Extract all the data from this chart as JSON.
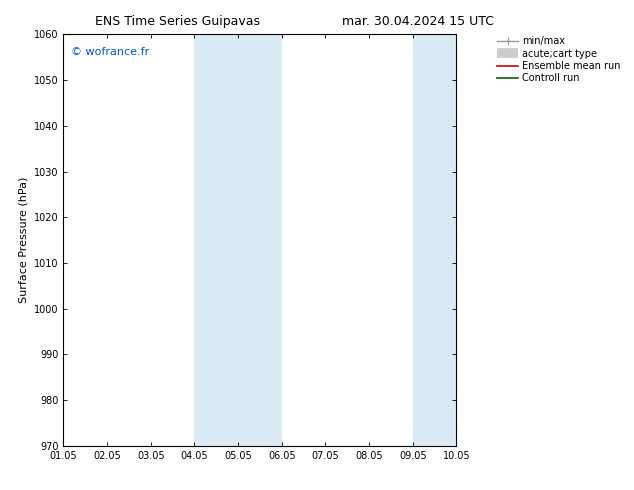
{
  "title_left": "ENS Time Series Guipavas",
  "title_right": "mar. 30.04.2024 15 UTC",
  "ylabel": "Surface Pressure (hPa)",
  "ylim": [
    970,
    1060
  ],
  "yticks": [
    970,
    980,
    990,
    1000,
    1010,
    1020,
    1030,
    1040,
    1050,
    1060
  ],
  "xlim": [
    0,
    9
  ],
  "xtick_labels": [
    "01.05",
    "02.05",
    "03.05",
    "04.05",
    "05.05",
    "06.05",
    "07.05",
    "08.05",
    "09.05",
    "10.05"
  ],
  "xtick_positions": [
    0,
    1,
    2,
    3,
    4,
    5,
    6,
    7,
    8,
    9
  ],
  "shade_bands": [
    {
      "xmin": 3,
      "xmax": 4,
      "color": "#daeaf5"
    },
    {
      "xmin": 4,
      "xmax": 5,
      "color": "#daeaf5"
    },
    {
      "xmin": 8,
      "xmax": 9,
      "color": "#daeaf5"
    }
  ],
  "watermark": "© wofrance.fr",
  "watermark_color": "#0055cc",
  "background_color": "#ffffff",
  "axes_bg_color": "#ffffff",
  "figsize": [
    6.34,
    4.9
  ],
  "dpi": 100,
  "legend_fontsize": 7,
  "title_fontsize": 9,
  "tick_fontsize": 7,
  "ylabel_fontsize": 8
}
